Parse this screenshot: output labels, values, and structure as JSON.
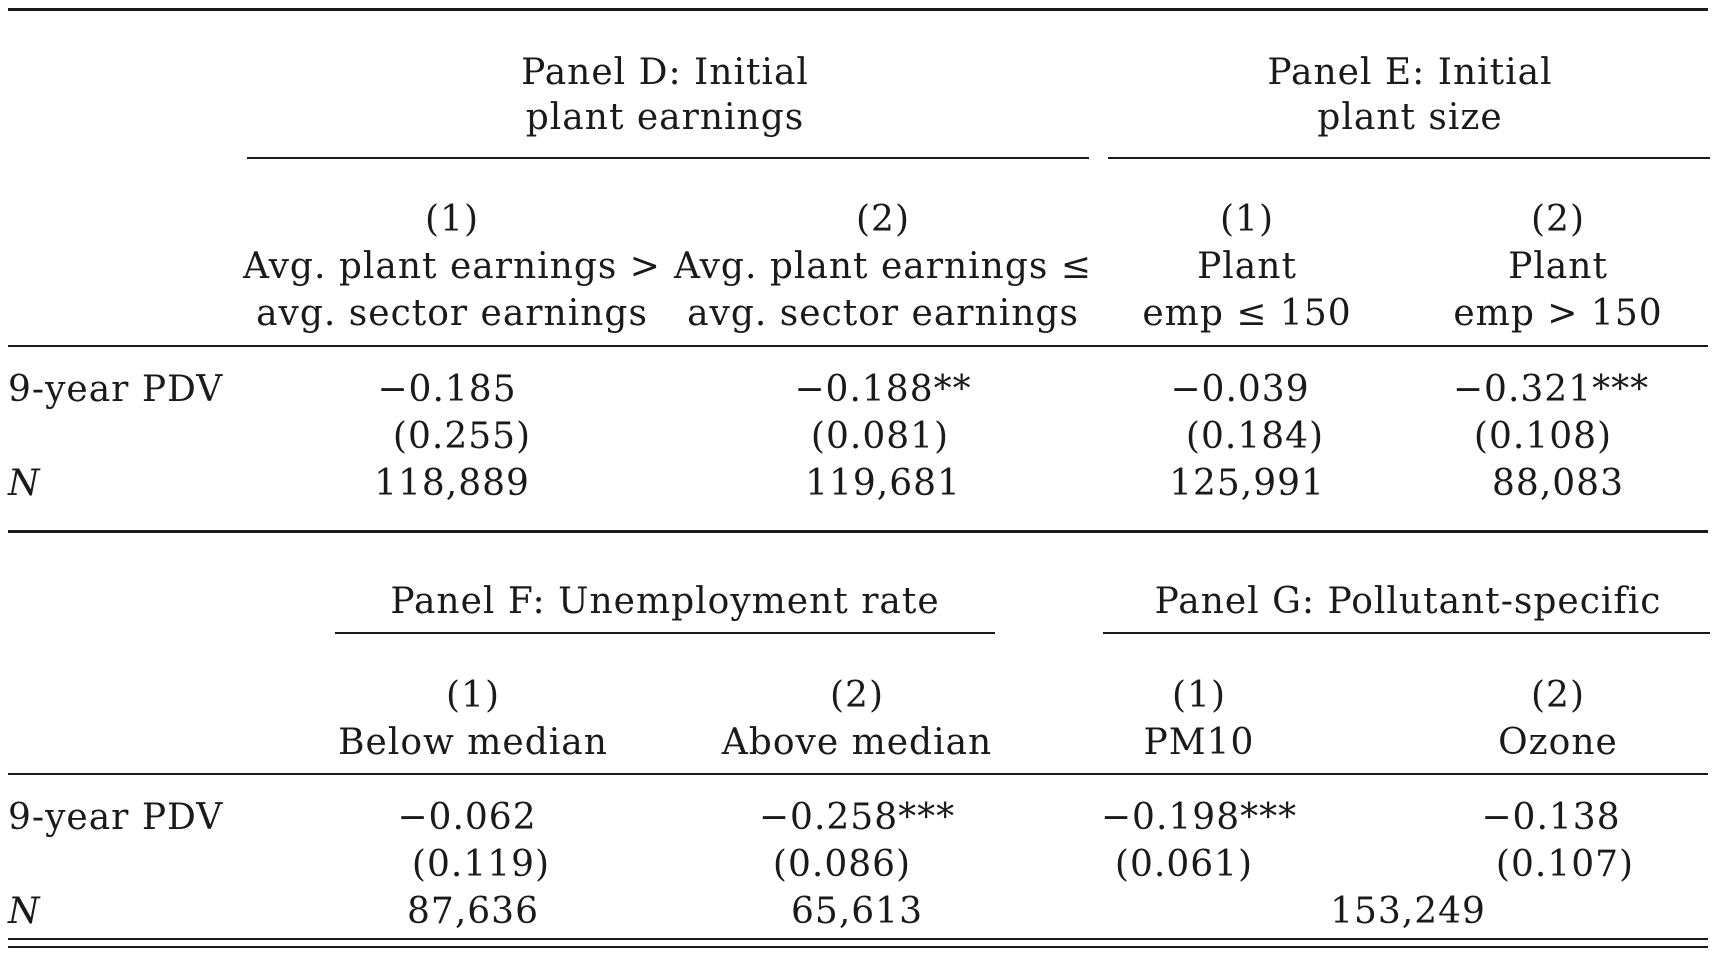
{
  "top": {
    "panel_d": {
      "line1": "Panel D: Initial",
      "line2": "plant earnings"
    },
    "panel_e": {
      "line1": "Panel E: Initial",
      "line2": "plant size"
    },
    "columns": [
      {
        "num": "(1)",
        "line1": "Avg. plant earnings >",
        "line2": "avg. sector earnings"
      },
      {
        "num": "(2)",
        "line1": "Avg. plant earnings ≤",
        "line2": "avg. sector earnings"
      },
      {
        "num": "(1)",
        "line1": "Plant",
        "line2": "emp ≤ 150"
      },
      {
        "num": "(2)",
        "line1": "Plant",
        "line2": "emp > 150"
      }
    ],
    "row_pdv_label": "9-year PDV",
    "coef": [
      "−0.185",
      "−0.188**",
      "−0.039",
      "−0.321***"
    ],
    "se": [
      "(0.255)",
      "(0.081)",
      "(0.184)",
      "(0.108)"
    ],
    "row_n_label": "N",
    "n": [
      "118,889",
      "119,681",
      "125,991",
      "88,083"
    ]
  },
  "bottom": {
    "panel_f": "Panel F: Unemployment rate",
    "panel_g": "Panel G: Pollutant-specific",
    "columns": [
      {
        "num": "(1)",
        "label": "Below median"
      },
      {
        "num": "(2)",
        "label": "Above median"
      },
      {
        "num": "(1)",
        "label": "PM10"
      },
      {
        "num": "(2)",
        "label": "Ozone"
      }
    ],
    "row_pdv_label": "9-year PDV",
    "coef": [
      "−0.062",
      "−0.258***",
      "−0.198***",
      "−0.138"
    ],
    "se": [
      "(0.119)",
      "(0.086)",
      "(0.061)",
      "(0.107)"
    ],
    "row_n_label": "N",
    "n": [
      "87,636",
      "65,613",
      "153,249"
    ]
  }
}
